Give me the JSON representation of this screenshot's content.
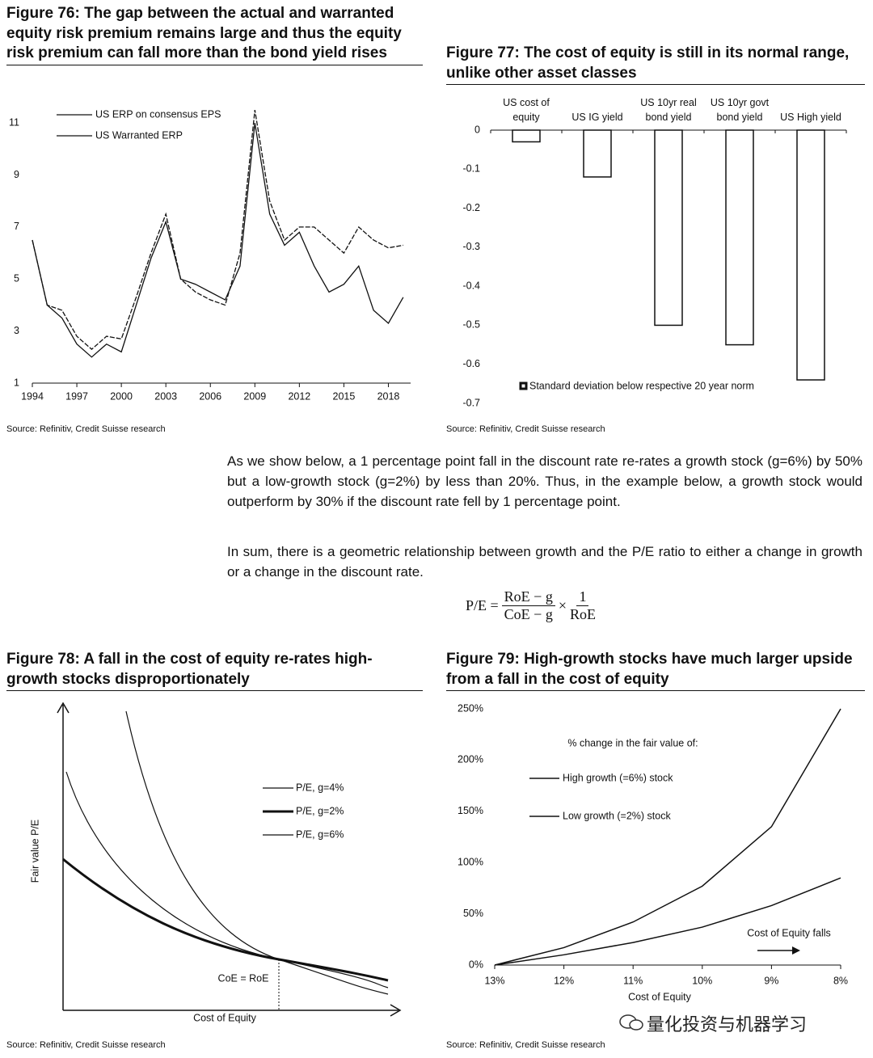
{
  "chart_data": [
    {
      "type": "line",
      "title": "Figure 76: The gap between the actual and warranted equity risk premium remains large and thus the equity risk premium can fall more than the bond yield rises",
      "x": [
        1994,
        1995,
        1996,
        1997,
        1998,
        1999,
        2000,
        2001,
        2002,
        2003,
        2004,
        2005,
        2006,
        2007,
        2008,
        2009,
        2010,
        2011,
        2012,
        2013,
        2014,
        2015,
        2016,
        2017,
        2018,
        2019
      ],
      "series": [
        {
          "name": "US ERP on consensus EPS",
          "color": "#111111",
          "values": [
            6.5,
            4,
            3.8,
            2.8,
            2.3,
            2.8,
            2.7,
            4.3,
            6,
            7.5,
            5,
            4.5,
            4.2,
            4,
            6,
            11.5,
            8,
            6.5,
            7,
            7,
            6.5,
            6,
            7,
            6.5,
            6.2,
            6.3
          ]
        },
        {
          "name": "US Warranted ERP",
          "color": "#111111",
          "values": [
            6.5,
            4,
            3.5,
            2.5,
            2,
            2.5,
            2.2,
            4,
            5.8,
            7.2,
            5,
            4.8,
            4.5,
            4.2,
            5.5,
            11,
            7.5,
            6.3,
            6.8,
            5.5,
            4.5,
            4.8,
            5.5,
            3.8,
            3.3,
            4.3
          ]
        }
      ],
      "xlim": [
        1994,
        2019.5
      ],
      "xticks": [
        1994,
        1997,
        2000,
        2003,
        2006,
        2009,
        2012,
        2015,
        2018
      ],
      "ylim": [
        1,
        12
      ],
      "yticks": [
        1,
        3,
        5,
        7,
        9,
        11
      ],
      "source": "Source: Refinitiv, Credit Suisse research"
    },
    {
      "type": "bar",
      "title": "Figure 77: The cost of equity is still in its normal range, unlike other asset classes",
      "categories": [
        "US cost of equity",
        "US IG yield",
        "US 10yr real bond yield",
        "US 10yr govt bond yield",
        "US High yield"
      ],
      "series": [
        {
          "name": "Standard deviation below respective 20 year norm",
          "color": "#ffffff",
          "values": [
            -0.03,
            -0.12,
            -0.5,
            -0.55,
            -0.64
          ]
        }
      ],
      "ylim": [
        -0.7,
        0
      ],
      "yticks": [
        0,
        -0.1,
        -0.2,
        -0.3,
        -0.4,
        -0.5,
        -0.6,
        -0.7
      ],
      "source": "Source: Refinitiv, Credit Suisse research"
    },
    {
      "type": "diagram",
      "title": "Figure 78: A fall in the cost of equity re-rates high-growth stocks disproportionately",
      "series": [
        {
          "name": "P/E, g=4%",
          "color": "#111111"
        },
        {
          "name": "P/E, g=2%",
          "color": "#111111"
        },
        {
          "name": "P/E, g=6%",
          "color": "#111111"
        }
      ],
      "x_label": "Cost of Equity",
      "y_label": "Fair value P/E",
      "annotation": "CoE = RoE",
      "source": "Source: Refinitiv, Credit Suisse research"
    },
    {
      "type": "line",
      "title": "Figure 79: High-growth stocks have much larger upside from a fall in the cost of equity",
      "categories": [
        "13%",
        "12%",
        "11%",
        "10%",
        "9%",
        "8%"
      ],
      "series": [
        {
          "name": "High growth (=6%) stock",
          "color": "#111111",
          "values": [
            0,
            17,
            42,
            77,
            135,
            250
          ]
        },
        {
          "name": "Low growth (=2%) stock",
          "color": "#111111",
          "values": [
            0,
            10,
            22,
            37,
            58,
            85
          ]
        }
      ],
      "ylim": [
        0,
        250
      ],
      "yticks": [
        {
          "value": 0,
          "label": "0%"
        },
        {
          "value": 50,
          "label": "50%"
        },
        {
          "value": 100,
          "label": "100%"
        },
        {
          "value": 150,
          "label": "150%"
        },
        {
          "value": 200,
          "label": "200%"
        },
        {
          "value": 250,
          "label": "250%"
        }
      ],
      "x_label": "Cost of Equity",
      "legend_title": "% change in the fair value of:",
      "annotation": "Cost of Equity falls",
      "source": "Source: Refinitiv, Credit Suisse research"
    }
  ],
  "body": {
    "paragraphs": [
      "As we show below, a 1 percentage point fall in the discount rate re-rates a growth stock (g=6%) by 50% but a low-growth stock (g=2%) by less than 20%. Thus, in the example below, a growth stock would outperform by 30% if the discount rate fell by 1 percentage point.",
      "In sum, there is a geometric relationship between growth and the P/E ratio to either a change in growth or a change in the discount rate."
    ],
    "formula": {
      "lhs": "P/E =",
      "num1": "RoE − g",
      "den1": "CoE − g",
      "op": "×",
      "num2": "1",
      "den2": "RoE"
    }
  },
  "watermark": "量化投资与机器学习"
}
